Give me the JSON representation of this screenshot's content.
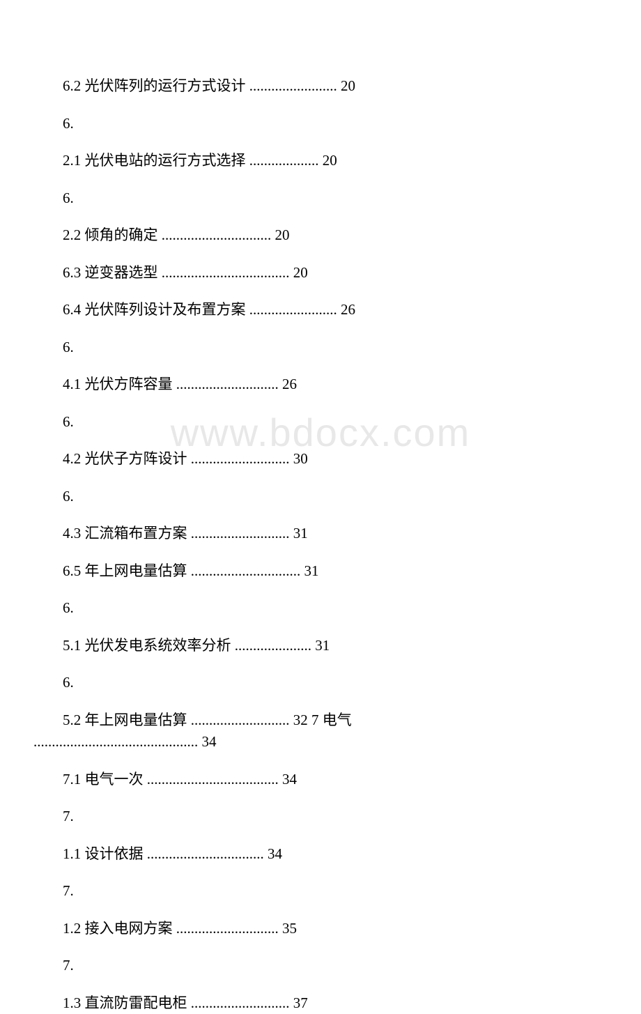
{
  "watermark": "www.bdocx.com",
  "font": {
    "family": "SimSun",
    "size_pt": 16,
    "color": "#000000",
    "line_height": 1.5
  },
  "background_color": "#ffffff",
  "watermark_color": "#e8e8e8",
  "toc_entries": [
    {
      "text": "6.2 光伏阵列的运行方式设计 ........................ 20"
    },
    {
      "text": "6."
    },
    {
      "text": "2.1 光伏电站的运行方式选择 ................... 20"
    },
    {
      "text": "6."
    },
    {
      "text": "2.2 倾角的确定 .............................. 20"
    },
    {
      "text": "6.3 逆变器选型 ................................... 20"
    },
    {
      "text": "6.4 光伏阵列设计及布置方案 ........................ 26"
    },
    {
      "text": "6."
    },
    {
      "text": "4.1 光伏方阵容量 ............................ 26"
    },
    {
      "text": "6."
    },
    {
      "text": "4.2 光伏子方阵设计 ........................... 30"
    },
    {
      "text": "6."
    },
    {
      "text": "4.3 汇流箱布置方案 ........................... 31"
    },
    {
      "text": "6.5 年上网电量估算 .............................. 31"
    },
    {
      "text": "6."
    },
    {
      "text": "5.1 光伏发电系统效率分析 ..................... 31"
    },
    {
      "text": "6."
    },
    {
      "text_first": "5.2 年上网电量估算 ........................... 32 7 电气",
      "text_second": "............................................. 34",
      "wrapped": true
    },
    {
      "text": "7.1 电气一次 .................................... 34"
    },
    {
      "text": "7."
    },
    {
      "text": "1.1 设计依据 ................................ 34"
    },
    {
      "text": "7."
    },
    {
      "text": "1.2 接入电网方案 ............................ 35"
    },
    {
      "text": "7."
    },
    {
      "text": "1.3 直流防雷配电柜 ........................... 37"
    }
  ]
}
